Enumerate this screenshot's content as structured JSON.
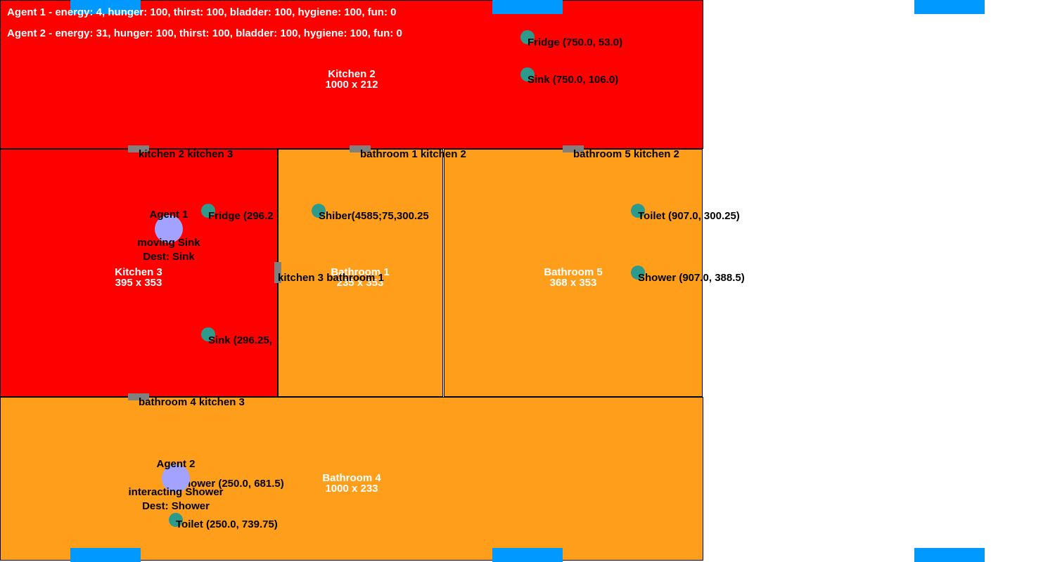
{
  "hud": {
    "agent1_status": "Agent 1 - energy: 4, hunger: 100, thirst: 100, bladder: 100, hygiene: 100, fun: 0",
    "agent2_status": "Agent 2 - energy: 31, hunger: 100, thirst: 100, bladder: 100, hygiene: 100, fun: 0"
  },
  "colors": {
    "kitchen": "#ff0000",
    "bathroom": "#ff9e1a",
    "object": "#2e9a8c",
    "agent": "#a3a3ff",
    "door": "#808080",
    "window": "#0099ff"
  },
  "rooms": {
    "kitchen2": {
      "name": "Kitchen 2",
      "size": "1000 x 212"
    },
    "kitchen3": {
      "name": "Kitchen 3",
      "size": "395 x 353"
    },
    "bathroom1": {
      "name": "Bathroom 1",
      "size": "235 x 353"
    },
    "bathroom5": {
      "name": "Bathroom 5",
      "size": "368 x 353"
    },
    "bathroom4": {
      "name": "Bathroom 4",
      "size": "1000 x 233"
    }
  },
  "doors": {
    "k2_k3": "kitchen 2 kitchen 3",
    "b1_k2": "bathroom 1 kitchen 2",
    "b5_k2": "bathroom 5 kitchen 2",
    "k3_b1": "kitchen 3 bathroom 1",
    "b4_k3": "bathroom 4 kitchen 3"
  },
  "objects": {
    "k2_fridge": "Fridge (750.0, 53.0)",
    "k2_sink": "Sink (750.0, 106.0)",
    "k3_fridge": "Fridge (296.2",
    "k3_sink": "Sink (296.25,",
    "b1_overlap": "Shiber(4585;75,300.25",
    "b5_toilet": "Toilet (907.0, 300.25)",
    "b5_shower": "Shower (907.0, 388.5)",
    "b4_shower": "hower (250.0, 681.5)",
    "b4_toilet": "Toilet (250.0, 739.75)"
  },
  "agents": {
    "agent1": {
      "name": "Agent 1",
      "action": "moving Sink",
      "dest": "Dest: Sink"
    },
    "agent2": {
      "name": "Agent 2",
      "action": "interacting Shower",
      "dest": "Dest: Shower"
    }
  }
}
